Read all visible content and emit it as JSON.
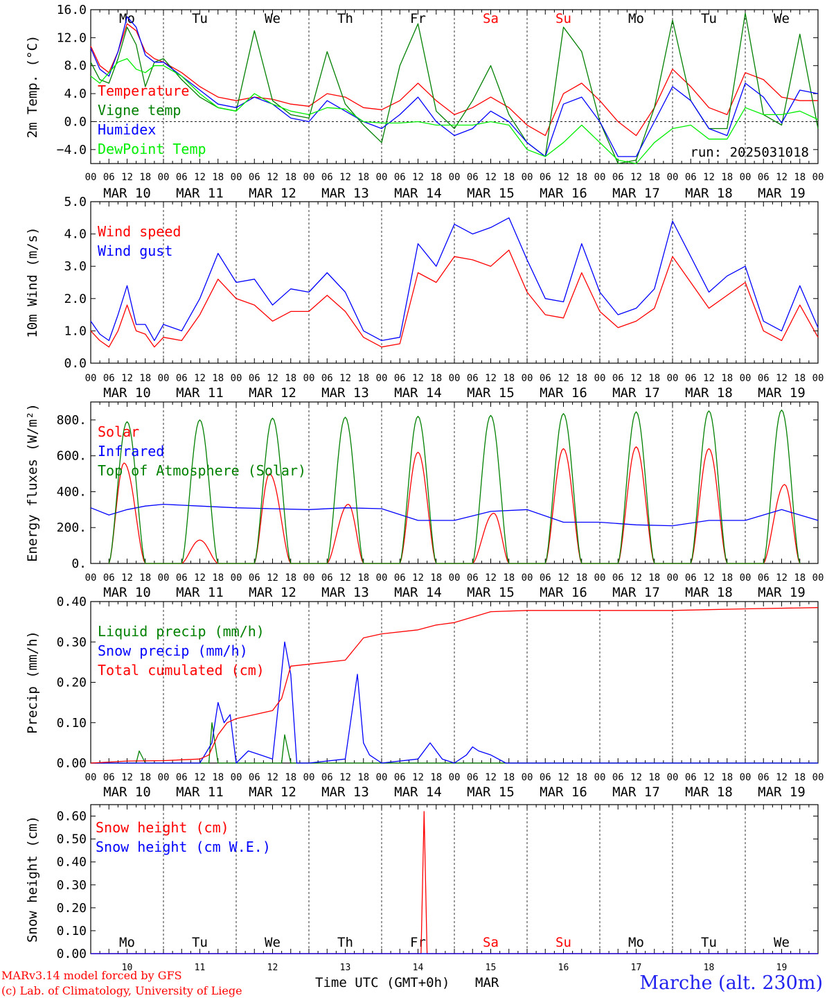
{
  "colors": {
    "red": "#ff0000",
    "green": "#008000",
    "blue": "#0000ff",
    "lightgreen": "#00ee00",
    "weekend": "#ff0000"
  },
  "time_axis": {
    "hour_ticks": [
      "00",
      "06",
      "12",
      "18"
    ],
    "end_tick": "00",
    "dates": [
      "MAR 10",
      "MAR 11",
      "MAR 12",
      "MAR 13",
      "MAR 14",
      "MAR 15",
      "MAR 16",
      "MAR 17",
      "MAR 18",
      "MAR 19"
    ],
    "weekdays": [
      "Mo",
      "Tu",
      "We",
      "Th",
      "Fr",
      "Sa",
      "Su",
      "Mo",
      "Tu",
      "We"
    ],
    "weekend_days": [
      5,
      6
    ],
    "day_numbers": [
      "10",
      "11",
      "12",
      "13",
      "14",
      "15",
      "16",
      "17",
      "18",
      "19"
    ],
    "xlabel": "Time UTC (GMT+0h)",
    "month": "MAR"
  },
  "run_label": "run: 2025031018",
  "footer": {
    "model": "MARv3.14 model forced by GFS",
    "copyright": "(c) Lab. of Climatology, University of Liege",
    "station": "Marche (alt. 230m)"
  },
  "chart_data": [
    {
      "type": "line",
      "ylabel": "2m Temp. (°C)",
      "ylim": [
        -6,
        16
      ],
      "yticks": [
        "16.0",
        "12.0",
        "8.0",
        "4.0",
        "0.0",
        "−4.0"
      ],
      "ytick_values": [
        16,
        12,
        8,
        4,
        0,
        -4
      ],
      "zero_line": true,
      "x_unit": "hours since MAR 10 00 UTC",
      "series": [
        {
          "name": "Temperature",
          "color": "red",
          "x": [
            0,
            3,
            6,
            9,
            12,
            15,
            18,
            21,
            24,
            30,
            36,
            42,
            48,
            54,
            60,
            66,
            72,
            78,
            84,
            90,
            96,
            102,
            108,
            114,
            120,
            126,
            132,
            138,
            144,
            150,
            156,
            162,
            168,
            174,
            180,
            186,
            192,
            198,
            204,
            210,
            216,
            222,
            228,
            234,
            240
          ],
          "y": [
            10.8,
            8,
            7,
            10,
            14,
            13,
            10,
            9,
            8.5,
            7,
            5,
            3.5,
            3,
            3.5,
            3.2,
            2.5,
            2.2,
            4,
            3.5,
            2,
            1.7,
            3,
            5.5,
            3,
            1,
            2,
            3.5,
            2,
            -0.5,
            -2,
            4,
            5.5,
            3,
            0,
            -2,
            2,
            7.5,
            5,
            2,
            1,
            7,
            6,
            3.5,
            3,
            3
          ]
        },
        {
          "name": "Vigne temp",
          "color": "green",
          "x": [
            0,
            3,
            6,
            9,
            12,
            15,
            18,
            21,
            24,
            30,
            36,
            42,
            48,
            54,
            60,
            66,
            72,
            78,
            84,
            90,
            96,
            102,
            108,
            114,
            120,
            126,
            132,
            138,
            144,
            150,
            156,
            162,
            168,
            174,
            180,
            186,
            192,
            198,
            204,
            210,
            216,
            222,
            228,
            234,
            240
          ],
          "y": [
            8.5,
            6,
            5.5,
            9,
            13.5,
            11,
            5,
            8.5,
            9,
            6,
            3.5,
            2,
            1.5,
            13,
            3,
            1,
            0.5,
            10,
            2.5,
            -0.5,
            -3,
            8,
            14,
            1.5,
            -1,
            3,
            8,
            1,
            -3,
            -5,
            13.5,
            10,
            0,
            -6,
            -5.5,
            2,
            14.5,
            3,
            -1,
            -1,
            15.5,
            1,
            -0.5,
            12.5,
            -1
          ]
        },
        {
          "name": "Humidex",
          "color": "blue",
          "x": [
            0,
            3,
            6,
            9,
            12,
            15,
            18,
            21,
            24,
            30,
            36,
            42,
            48,
            54,
            60,
            66,
            72,
            78,
            84,
            90,
            96,
            102,
            108,
            114,
            120,
            126,
            132,
            138,
            144,
            150,
            156,
            162,
            168,
            174,
            180,
            186,
            192,
            198,
            204,
            210,
            216,
            222,
            228,
            234,
            240
          ],
          "y": [
            10.5,
            7.5,
            6.5,
            10,
            15,
            13.5,
            9.5,
            8.5,
            8.5,
            6.5,
            4.5,
            2.5,
            2,
            3.5,
            2.5,
            0.5,
            0,
            3,
            1.5,
            0,
            -1,
            1,
            3.5,
            0,
            -2,
            -1,
            1.5,
            0,
            -3,
            -5,
            2.5,
            3.5,
            0,
            -5,
            -5,
            0,
            5,
            3,
            -1,
            -2,
            5.5,
            3.5,
            -0.2,
            4.5,
            4
          ]
        },
        {
          "name": "DewPoint Temp",
          "color": "lightgreen",
          "x": [
            0,
            3,
            6,
            9,
            12,
            15,
            18,
            21,
            24,
            30,
            36,
            42,
            48,
            54,
            60,
            66,
            72,
            78,
            84,
            90,
            96,
            102,
            108,
            114,
            120,
            126,
            132,
            138,
            144,
            150,
            156,
            162,
            168,
            174,
            180,
            186,
            192,
            198,
            204,
            210,
            216,
            222,
            228,
            234,
            240
          ],
          "y": [
            6.5,
            5.5,
            7,
            8.5,
            9,
            7.5,
            7,
            8,
            8,
            6.5,
            4,
            2,
            1.5,
            4,
            2.5,
            1.5,
            1,
            2,
            1.8,
            0,
            -0.2,
            -0.2,
            0,
            -0.5,
            -0.5,
            -0.5,
            0,
            -0.5,
            -4,
            -5,
            -3,
            -0.5,
            -3,
            -5.5,
            -6,
            -3,
            -1,
            -0.5,
            -2.5,
            -2.5,
            2,
            1,
            1,
            1.5,
            0.3
          ]
        }
      ]
    },
    {
      "type": "line",
      "ylabel": "10m Wind (m/s)",
      "ylim": [
        0,
        5
      ],
      "yticks": [
        "5.0",
        "4.0",
        "3.0",
        "2.0",
        "1.0",
        "0.0"
      ],
      "ytick_values": [
        5,
        4,
        3,
        2,
        1,
        0
      ],
      "x_unit": "hours since MAR 10 00 UTC",
      "series": [
        {
          "name": "Wind speed",
          "color": "red",
          "x": [
            0,
            3,
            6,
            9,
            12,
            15,
            18,
            21,
            24,
            30,
            36,
            42,
            48,
            54,
            60,
            66,
            72,
            78,
            84,
            90,
            96,
            102,
            108,
            114,
            120,
            126,
            132,
            138,
            144,
            150,
            156,
            162,
            168,
            174,
            180,
            186,
            192,
            198,
            204,
            210,
            216,
            222,
            228,
            234,
            240
          ],
          "y": [
            1,
            0.7,
            0.5,
            1,
            1.8,
            1,
            0.9,
            0.5,
            0.8,
            0.7,
            1.5,
            2.6,
            2,
            1.8,
            1.3,
            1.6,
            1.6,
            2.1,
            1.6,
            0.8,
            0.5,
            0.6,
            2.8,
            2.5,
            3.3,
            3.2,
            3,
            3.5,
            2.2,
            1.5,
            1.4,
            2.8,
            1.6,
            1.1,
            1.3,
            1.7,
            3.3,
            2.5,
            1.7,
            2.1,
            2.5,
            1,
            0.7,
            1.8,
            0.8
          ]
        },
        {
          "name": "Wind gust",
          "color": "blue",
          "x": [
            0,
            3,
            6,
            9,
            12,
            15,
            18,
            21,
            24,
            30,
            36,
            42,
            48,
            54,
            60,
            66,
            72,
            78,
            84,
            90,
            96,
            102,
            108,
            114,
            120,
            126,
            132,
            138,
            144,
            150,
            156,
            162,
            168,
            174,
            180,
            186,
            192,
            198,
            204,
            210,
            216,
            222,
            228,
            234,
            240
          ],
          "y": [
            1.3,
            0.9,
            0.7,
            1.5,
            2.4,
            1.2,
            1.2,
            0.7,
            1.2,
            1,
            2,
            3.4,
            2.5,
            2.6,
            1.8,
            2.3,
            2.2,
            2.8,
            2.2,
            1,
            0.7,
            0.8,
            3.7,
            3,
            4.3,
            4,
            4.2,
            4.5,
            3.2,
            2,
            1.9,
            3.7,
            2.2,
            1.5,
            1.7,
            2.3,
            4.4,
            3.3,
            2.2,
            2.7,
            3,
            1.3,
            1,
            2.4,
            1.1
          ]
        }
      ]
    },
    {
      "type": "line",
      "ylabel": "Energy fluxes (W/m²)",
      "ylim": [
        0,
        900
      ],
      "yticks": [
        "800.",
        "600.",
        "400.",
        "200.",
        "0."
      ],
      "ytick_values": [
        800,
        600,
        400,
        200,
        0
      ],
      "x_unit": "hours since MAR 10 00 UTC",
      "daylight_hours": [
        6,
        18
      ],
      "series": [
        {
          "name": "Solar",
          "color": "red",
          "kind": "daily_peak",
          "peak_hour": [
            11,
            12,
            11,
            13,
            12,
            13,
            12,
            12,
            12,
            13
          ],
          "daily_peak": [
            560,
            130,
            500,
            330,
            620,
            280,
            640,
            650,
            640,
            440
          ]
        },
        {
          "name": "Infrared",
          "color": "blue",
          "x": [
            0,
            6,
            12,
            18,
            24,
            36,
            48,
            60,
            72,
            84,
            96,
            108,
            120,
            132,
            144,
            156,
            168,
            180,
            192,
            204,
            216,
            228,
            240
          ],
          "y": [
            310,
            270,
            300,
            320,
            330,
            320,
            310,
            305,
            300,
            310,
            305,
            240,
            240,
            290,
            300,
            230,
            230,
            215,
            210,
            240,
            240,
            300,
            240
          ]
        },
        {
          "name": "Top of Atmosphere (Solar)",
          "color": "green",
          "kind": "daily_peak",
          "peak_hour": [
            12,
            12,
            12,
            12,
            12,
            12,
            12,
            12,
            12,
            12
          ],
          "daily_peak": [
            790,
            800,
            810,
            815,
            820,
            825,
            835,
            845,
            850,
            855
          ]
        }
      ]
    },
    {
      "type": "line",
      "ylabel": "Precip (mm/h)",
      "ylim": [
        0,
        0.4
      ],
      "yticks": [
        "0.40",
        "0.30",
        "0.20",
        "0.10",
        "0.00"
      ],
      "ytick_values": [
        0.4,
        0.3,
        0.2,
        0.1,
        0
      ],
      "x_unit": "hours since MAR 10 00 UTC",
      "series": [
        {
          "name": "Liquid precip (mm/h)",
          "color": "green",
          "x": [
            0,
            15,
            16,
            18,
            24,
            39,
            40,
            42,
            48,
            63,
            64,
            66,
            72,
            240
          ],
          "y": [
            0,
            0,
            0.03,
            0,
            0,
            0,
            0.1,
            0,
            0,
            0,
            0.07,
            0,
            0,
            0
          ]
        },
        {
          "name": "Snow precip (mm/h)",
          "color": "blue",
          "x": [
            0,
            24,
            36,
            40,
            42,
            44,
            46,
            48,
            52,
            56,
            60,
            62,
            64,
            66,
            68,
            72,
            84,
            88,
            90,
            92,
            96,
            108,
            112,
            116,
            120,
            124,
            126,
            128,
            132,
            137,
            240
          ],
          "y": [
            0,
            0,
            0,
            0.05,
            0.15,
            0.1,
            0.12,
            0,
            0.03,
            0.02,
            0.01,
            0.15,
            0.3,
            0.22,
            0,
            0,
            0.01,
            0.22,
            0.05,
            0.02,
            0,
            0.01,
            0.05,
            0.01,
            0,
            0.02,
            0.04,
            0.03,
            0.02,
            0,
            0
          ]
        },
        {
          "name": "Total cumulated (cm)",
          "color": "red",
          "x": [
            0,
            12,
            24,
            36,
            39,
            42,
            45,
            48,
            54,
            60,
            63,
            66,
            72,
            84,
            90,
            96,
            108,
            114,
            120,
            132,
            144,
            180,
            192,
            216,
            240
          ],
          "y": [
            0,
            0.005,
            0.006,
            0.01,
            0.02,
            0.07,
            0.1,
            0.11,
            0.12,
            0.13,
            0.16,
            0.24,
            0.245,
            0.255,
            0.31,
            0.32,
            0.33,
            0.342,
            0.348,
            0.375,
            0.378,
            0.378,
            0.378,
            0.382,
            0.385
          ]
        }
      ]
    },
    {
      "type": "line",
      "ylabel": "Snow height (cm)",
      "ylim": [
        0,
        0.65
      ],
      "yticks": [
        "0.60",
        "0.50",
        "0.40",
        "0.30",
        "0.20",
        "0.10",
        "0.00"
      ],
      "ytick_values": [
        0.6,
        0.5,
        0.4,
        0.3,
        0.2,
        0.1,
        0
      ],
      "x_unit": "hours since MAR 10 00 UTC",
      "series": [
        {
          "name": "Snow height (cm)",
          "color": "red",
          "x": [
            0,
            109,
            110,
            111,
            240
          ],
          "y": [
            0,
            0,
            0.62,
            0,
            0
          ]
        },
        {
          "name": "Snow height (cm W.E.)",
          "color": "blue",
          "x": [
            0,
            240
          ],
          "y": [
            0,
            0
          ]
        }
      ]
    }
  ]
}
